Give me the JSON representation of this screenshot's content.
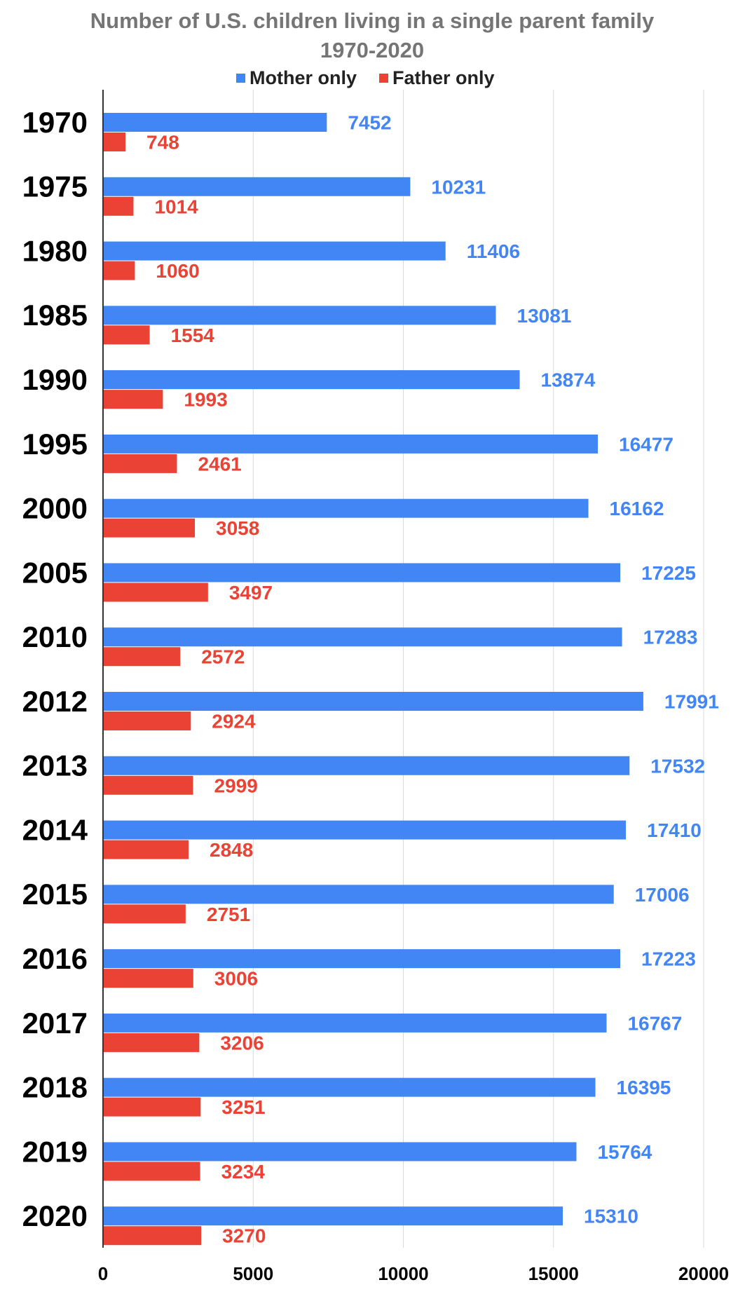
{
  "chart_data": {
    "type": "bar",
    "orientation": "horizontal",
    "title": "Number of U.S. children living in a single parent family",
    "subtitle": "1970-2020",
    "xlabel": "",
    "ylabel": "",
    "xlim": [
      0,
      20000
    ],
    "x_ticks": [
      0,
      5000,
      10000,
      15000,
      20000
    ],
    "grid": true,
    "legend_position": "top",
    "categories": [
      "1970",
      "1975",
      "1980",
      "1985",
      "1990",
      "1995",
      "2000",
      "2005",
      "2010",
      "2012",
      "2013",
      "2014",
      "2015",
      "2016",
      "2017",
      "2018",
      "2019",
      "2020"
    ],
    "series": [
      {
        "name": "Mother only",
        "color": "#4285f4",
        "values": [
          7452,
          10231,
          11406,
          13081,
          13874,
          16477,
          16162,
          17225,
          17283,
          17991,
          17532,
          17410,
          17006,
          17223,
          16767,
          16395,
          15764,
          15310
        ]
      },
      {
        "name": "Father only",
        "color": "#ea4335",
        "values": [
          748,
          1014,
          1060,
          1554,
          1993,
          2461,
          3058,
          3497,
          2572,
          2924,
          2999,
          2848,
          2751,
          3006,
          3206,
          3251,
          3234,
          3270
        ]
      }
    ]
  }
}
